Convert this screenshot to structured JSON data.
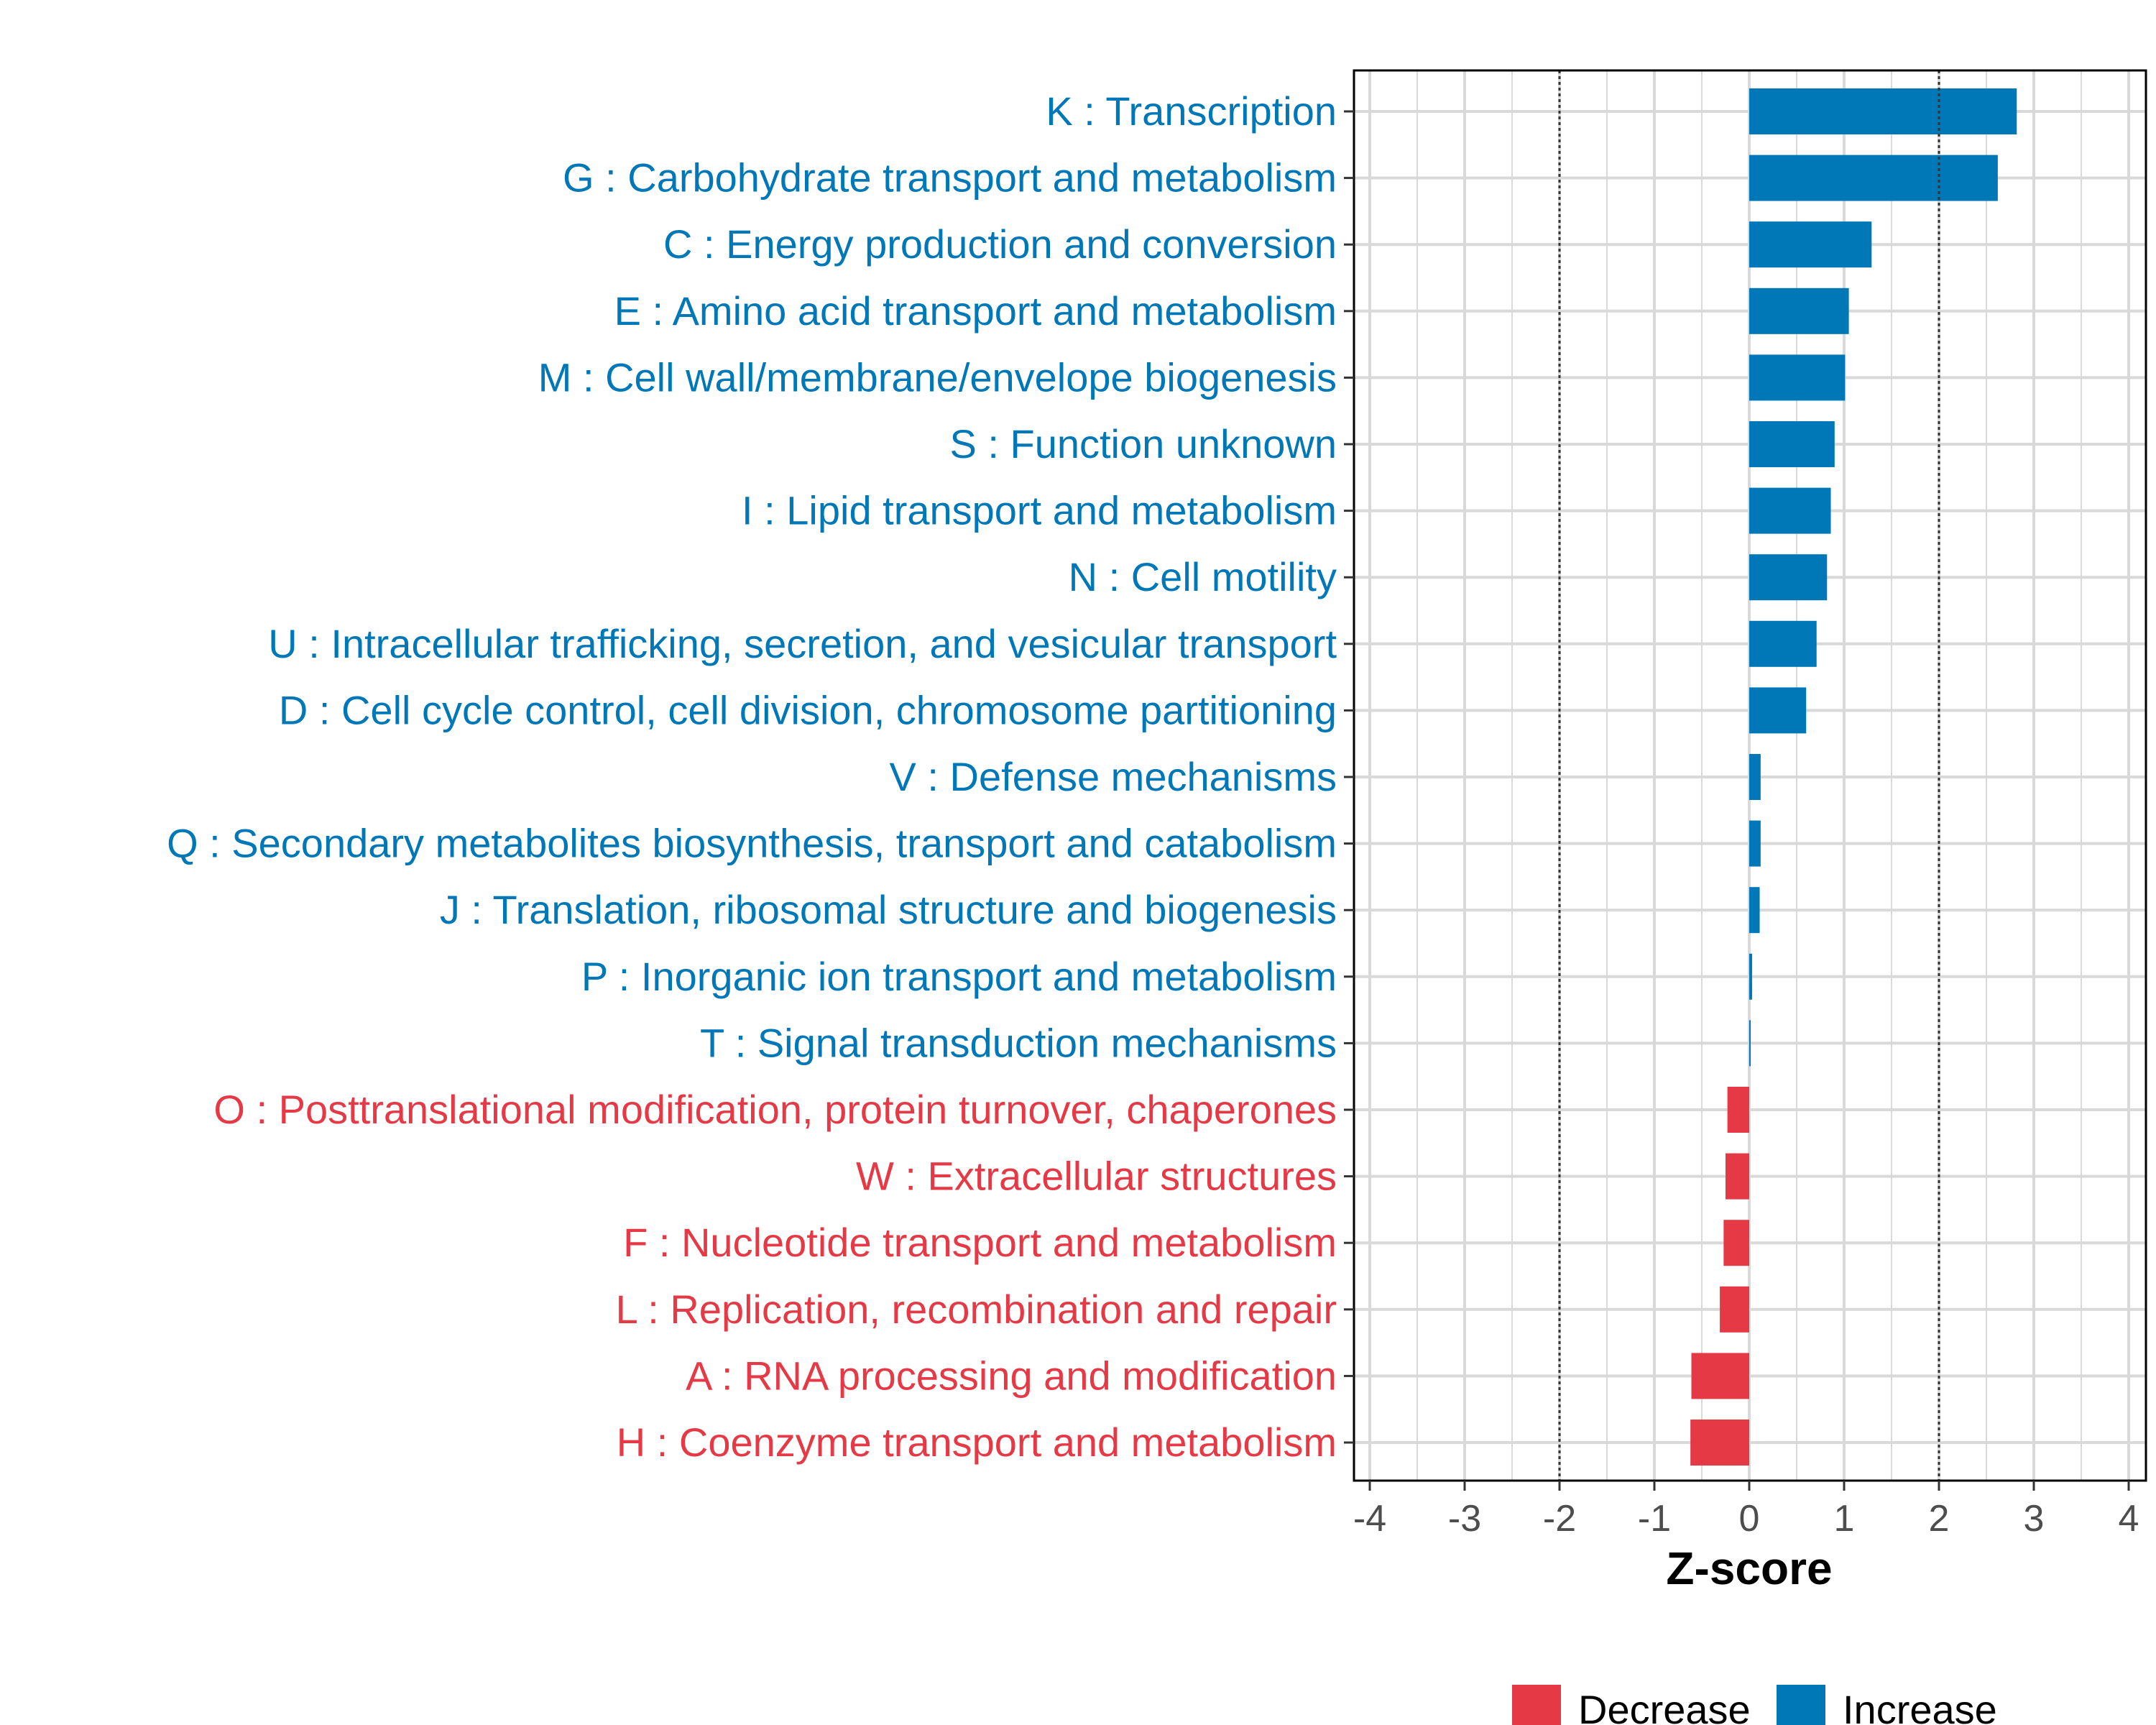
{
  "chart_data": {
    "type": "bar",
    "orientation": "horizontal",
    "xlabel": "Z-score",
    "xlim": [
      -4.2,
      4.2
    ],
    "xticks": [
      -4,
      -3,
      -2,
      -1,
      0,
      1,
      2,
      3,
      4
    ],
    "reference_lines": [
      -2,
      2
    ],
    "grid": true,
    "categories": [
      "K : Transcription",
      "G : Carbohydrate transport and metabolism",
      "C : Energy production and conversion",
      "E : Amino acid transport and metabolism",
      "M : Cell wall/membrane/envelope biogenesis",
      "S : Function unknown",
      "I : Lipid transport and metabolism",
      "N : Cell motility",
      "U : Intracellular trafficking, secretion, and vesicular transport",
      "D : Cell cycle control, cell division, chromosome partitioning",
      "V : Defense mechanisms",
      "Q : Secondary metabolites biosynthesis, transport and catabolism",
      "J : Translation, ribosomal structure and biogenesis",
      "P : Inorganic ion transport and metabolism",
      "T : Signal transduction mechanisms",
      "O : Posttranslational modification, protein turnover, chaperones",
      "W : Extracellular structures",
      "F : Nucleotide transport and metabolism",
      "L : Replication, recombination and repair",
      "A : RNA processing and modification",
      "H : Coenzyme transport and metabolism"
    ],
    "values": [
      2.82,
      2.62,
      1.29,
      1.05,
      1.01,
      0.9,
      0.86,
      0.82,
      0.71,
      0.6,
      0.12,
      0.12,
      0.11,
      0.03,
      0.01,
      -0.23,
      -0.25,
      -0.27,
      -0.31,
      -0.61,
      -0.62
    ],
    "groups": [
      "Increase",
      "Increase",
      "Increase",
      "Increase",
      "Increase",
      "Increase",
      "Increase",
      "Increase",
      "Increase",
      "Increase",
      "Increase",
      "Increase",
      "Increase",
      "Increase",
      "Increase",
      "Decrease",
      "Decrease",
      "Decrease",
      "Decrease",
      "Decrease",
      "Decrease"
    ],
    "legend": {
      "position": "bottom",
      "entries": [
        {
          "label": "Decrease",
          "color": "#e63946"
        },
        {
          "label": "Increase",
          "color": "#0077b6"
        }
      ]
    },
    "colors": {
      "Decrease": "#e63946",
      "Increase": "#0077b6"
    }
  }
}
